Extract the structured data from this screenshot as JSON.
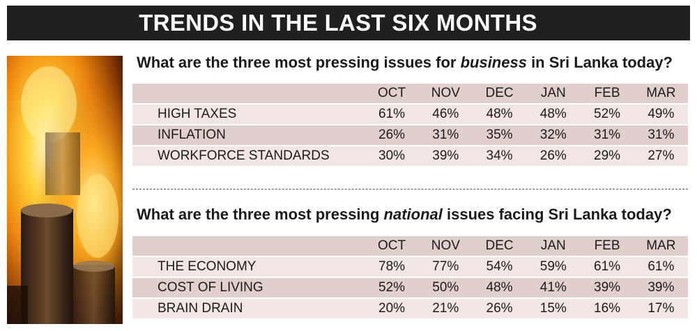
{
  "banner": {
    "title": "TRENDS IN THE LAST SIX MONTHS"
  },
  "chart_data": [
    {
      "type": "table",
      "title_parts": [
        "What are the three most pressing issues for ",
        "business",
        " in Sri Lanka today?"
      ],
      "columns": [
        "OCT",
        "NOV",
        "DEC",
        "JAN",
        "FEB",
        "MAR"
      ],
      "rows": [
        {
          "label": "HIGH TAXES",
          "values": [
            "61%",
            "46%",
            "48%",
            "48%",
            "52%",
            "49%"
          ]
        },
        {
          "label": "INFLATION",
          "values": [
            "26%",
            "31%",
            "35%",
            "32%",
            "31%",
            "31%"
          ]
        },
        {
          "label": "WORKFORCE STANDARDS",
          "values": [
            "30%",
            "39%",
            "34%",
            "26%",
            "29%",
            "27%"
          ]
        }
      ]
    },
    {
      "type": "table",
      "title_parts": [
        "What are the three most pressing ",
        "national",
        " issues facing Sri Lanka today?"
      ],
      "columns": [
        "OCT",
        "NOV",
        "DEC",
        "JAN",
        "FEB",
        "MAR"
      ],
      "rows": [
        {
          "label": "THE ECONOMY",
          "values": [
            "78%",
            "77%",
            "54%",
            "59%",
            "61%",
            "61%"
          ]
        },
        {
          "label": "COST OF LIVING",
          "values": [
            "52%",
            "50%",
            "48%",
            "41%",
            "39%",
            "39%"
          ]
        },
        {
          "label": "BRAIN DRAIN",
          "values": [
            "20%",
            "21%",
            "26%",
            "15%",
            "16%",
            "17%"
          ]
        }
      ]
    }
  ],
  "colors": {
    "banner_bg": "#211f1f",
    "row_band": "#e1cfcb",
    "row_plain": "#f1e6e3"
  },
  "photo": {
    "icon": "burning-coins-photo"
  }
}
